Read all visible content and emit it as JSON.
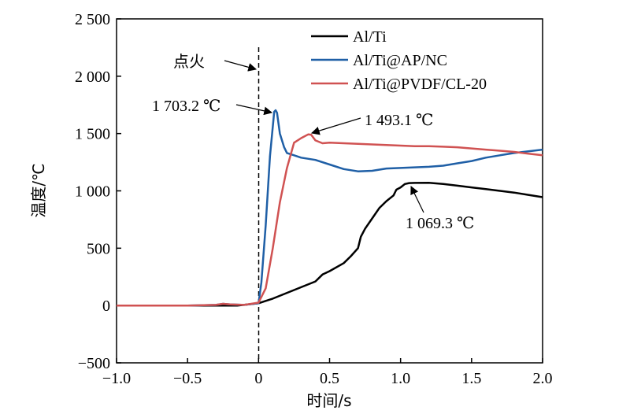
{
  "chart_data": {
    "type": "line",
    "xlabel": "时间/s",
    "ylabel": "温度/℃",
    "xlim": [
      -1.0,
      2.0
    ],
    "ylim": [
      -500,
      2500
    ],
    "xticks": [
      -1.0,
      -0.5,
      0,
      0.5,
      1.0,
      1.5,
      2.0
    ],
    "xtick_labels": [
      "−1.0",
      "−0.5",
      "0",
      "0.5",
      "1.0",
      "1.5",
      "2.0"
    ],
    "yticks": [
      -500,
      0,
      500,
      1000,
      1500,
      2000,
      2500
    ],
    "ytick_labels": [
      "−500",
      "0",
      "500",
      "1 000",
      "1 500",
      "2 000",
      "2 500"
    ],
    "grid": false,
    "legend_position": "top-right",
    "series": [
      {
        "name": "Al/Ti",
        "color": "#000000",
        "x": [
          -1.0,
          -0.5,
          -0.3,
          -0.15,
          0.0,
          0.1,
          0.2,
          0.3,
          0.4,
          0.45,
          0.5,
          0.6,
          0.65,
          0.7,
          0.72,
          0.75,
          0.8,
          0.85,
          0.9,
          0.95,
          0.97,
          1.0,
          1.03,
          1.06,
          1.1,
          1.2,
          1.3,
          1.4,
          1.5,
          1.6,
          1.7,
          1.8,
          1.9,
          2.0
        ],
        "y": [
          0,
          0,
          0,
          0,
          20,
          60,
          110,
          160,
          210,
          270,
          300,
          370,
          430,
          500,
          600,
          670,
          760,
          850,
          910,
          960,
          1010,
          1030,
          1060,
          1068,
          1069,
          1070,
          1060,
          1045,
          1030,
          1015,
          1000,
          985,
          965,
          945
        ]
      },
      {
        "name": "Al/Ti@AP/NC",
        "color": "#1f5fa6",
        "x": [
          -1.0,
          -0.5,
          -0.3,
          -0.25,
          -0.2,
          -0.1,
          0.0,
          0.02,
          0.05,
          0.08,
          0.11,
          0.12,
          0.13,
          0.15,
          0.18,
          0.2,
          0.25,
          0.3,
          0.4,
          0.5,
          0.6,
          0.7,
          0.8,
          0.9,
          1.0,
          1.1,
          1.2,
          1.3,
          1.4,
          1.5,
          1.6,
          1.7,
          1.8,
          1.9,
          2.0
        ],
        "y": [
          0,
          0,
          5,
          15,
          10,
          5,
          20,
          200,
          700,
          1300,
          1690,
          1703,
          1680,
          1500,
          1380,
          1330,
          1310,
          1290,
          1270,
          1230,
          1190,
          1170,
          1175,
          1195,
          1200,
          1205,
          1210,
          1220,
          1240,
          1260,
          1290,
          1310,
          1330,
          1345,
          1360
        ]
      },
      {
        "name": "Al/Ti@PVDF/CL-20",
        "color": "#d05252",
        "x": [
          -1.0,
          -0.5,
          -0.3,
          -0.25,
          -0.2,
          -0.1,
          0.0,
          0.05,
          0.1,
          0.15,
          0.2,
          0.25,
          0.3,
          0.35,
          0.37,
          0.4,
          0.45,
          0.5,
          0.6,
          0.7,
          0.8,
          0.9,
          1.0,
          1.1,
          1.2,
          1.3,
          1.4,
          1.5,
          1.6,
          1.7,
          1.8,
          1.9,
          2.0
        ],
        "y": [
          0,
          0,
          5,
          15,
          10,
          5,
          25,
          150,
          500,
          900,
          1200,
          1420,
          1460,
          1493,
          1490,
          1440,
          1415,
          1420,
          1415,
          1410,
          1405,
          1400,
          1395,
          1390,
          1390,
          1385,
          1380,
          1370,
          1360,
          1350,
          1340,
          1325,
          1310
        ]
      }
    ],
    "annotations": [
      {
        "id": "ignition",
        "text": "点火"
      },
      {
        "id": "peak-ap-nc",
        "text": "1 703.2 ℃",
        "x": 0.12,
        "y": 1703.2
      },
      {
        "id": "peak-pvdf",
        "text": "1 493.1 ℃",
        "x": 0.37,
        "y": 1493.1
      },
      {
        "id": "peak-alti",
        "text": "1 069.3 ℃",
        "x": 1.1,
        "y": 1069.3
      }
    ]
  }
}
